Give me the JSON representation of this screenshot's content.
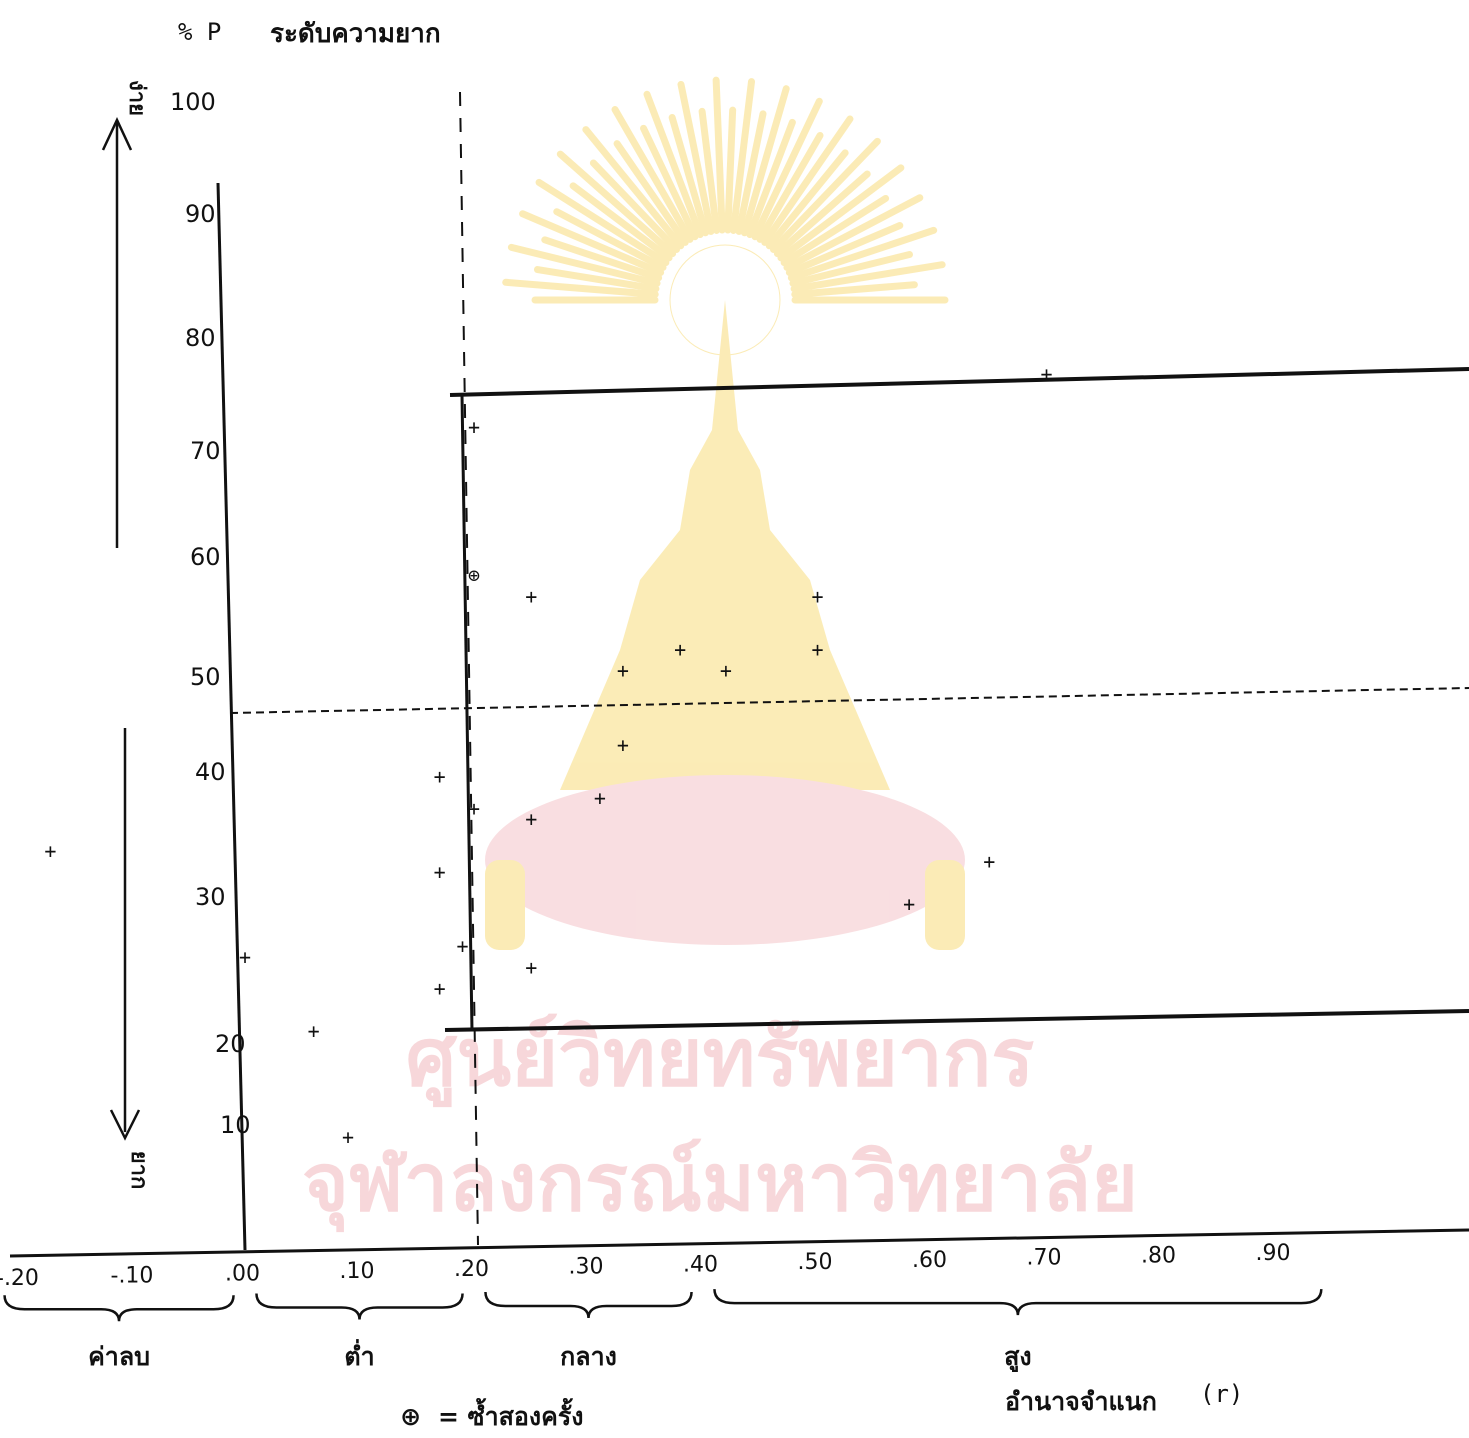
{
  "chart_data": {
    "type": "scatter",
    "title": "ระดับความยาก",
    "ylabel": "% P",
    "xlabel": "อำนาจจำแนก (r)",
    "y_direction_labels": {
      "up": "ง่าย",
      "down": "ยาก"
    },
    "xlim": [
      -0.22,
      0.96
    ],
    "ylim": [
      0,
      100
    ],
    "grid": false,
    "x_ticks": [
      "-.20",
      "-.10",
      ".00",
      ".10",
      ".20",
      ".30",
      ".40",
      ".50",
      ".60",
      ".70",
      ".80",
      ".90"
    ],
    "y_ticks": [
      "100",
      "90",
      "80",
      "70",
      "60",
      "50",
      "40",
      "30",
      "20",
      "10"
    ],
    "regions": [
      {
        "label": "ค่าลบ",
        "from": -0.21,
        "to": -0.01
      },
      {
        "label": "ต่ำ",
        "from": 0.01,
        "to": 0.19
      },
      {
        "label": "กลาง",
        "from": 0.21,
        "to": 0.39
      },
      {
        "label": "สูง",
        "from": 0.41,
        "to": 0.94
      }
    ],
    "reference_lines": [
      {
        "axis": "x",
        "value": 0.19,
        "style": "dashed"
      },
      {
        "axis": "y",
        "value": 50,
        "style": "dashed"
      },
      {
        "axis": "y",
        "value": 80,
        "style": "solid"
      },
      {
        "axis": "y",
        "value": 20,
        "style": "solid"
      }
    ],
    "acceptable_region": {
      "x_from": 0.2,
      "x_to": 0.96,
      "y_from": 20,
      "y_to": 80
    },
    "points": [
      {
        "x": -0.17,
        "y": 37,
        "marker": "+"
      },
      {
        "x": 0.0,
        "y": 27,
        "marker": "+"
      },
      {
        "x": 0.06,
        "y": 20,
        "marker": "+"
      },
      {
        "x": 0.09,
        "y": 10,
        "marker": "+"
      },
      {
        "x": 0.17,
        "y": 44,
        "marker": "+"
      },
      {
        "x": 0.17,
        "y": 35,
        "marker": "+"
      },
      {
        "x": 0.17,
        "y": 24,
        "marker": "+"
      },
      {
        "x": 0.19,
        "y": 28,
        "marker": "+"
      },
      {
        "x": 0.2,
        "y": 77,
        "marker": "+"
      },
      {
        "x": 0.2,
        "y": 63,
        "marker": "⊕"
      },
      {
        "x": 0.2,
        "y": 41,
        "marker": "+"
      },
      {
        "x": 0.25,
        "y": 61,
        "marker": "+"
      },
      {
        "x": 0.25,
        "y": 40,
        "marker": "+"
      },
      {
        "x": 0.25,
        "y": 26,
        "marker": "+"
      },
      {
        "x": 0.31,
        "y": 42,
        "marker": "+"
      },
      {
        "x": 0.33,
        "y": 54,
        "marker": "+"
      },
      {
        "x": 0.33,
        "y": 47,
        "marker": "+"
      },
      {
        "x": 0.38,
        "y": 56,
        "marker": "+"
      },
      {
        "x": 0.42,
        "y": 54,
        "marker": "+"
      },
      {
        "x": 0.5,
        "y": 61,
        "marker": "+"
      },
      {
        "x": 0.5,
        "y": 56,
        "marker": "+"
      },
      {
        "x": 0.58,
        "y": 32,
        "marker": "+"
      },
      {
        "x": 0.65,
        "y": 36,
        "marker": "+"
      },
      {
        "x": 0.7,
        "y": 82,
        "marker": "+"
      }
    ],
    "legend_note": "⊕ = ซ้ำสองครั้ง"
  },
  "header": {
    "p_label": "% P",
    "title": "ระดับความยาก"
  },
  "axis_side": {
    "easy": "ง่าย",
    "hard": "ยาก"
  },
  "footer": {
    "x_title": "อำนาจจำแนก",
    "x_unit": "(r)",
    "note_symbol": "⊕",
    "note_text": "= ซ้ำสองครั้ง"
  },
  "watermark": {
    "line1": "ศูนย์วิทยทรัพยากร",
    "line2": "จุฬาลงกรณ์มหาวิทยาลัย",
    "accent": "#f2b8bd",
    "emblem": "#f7d560"
  }
}
